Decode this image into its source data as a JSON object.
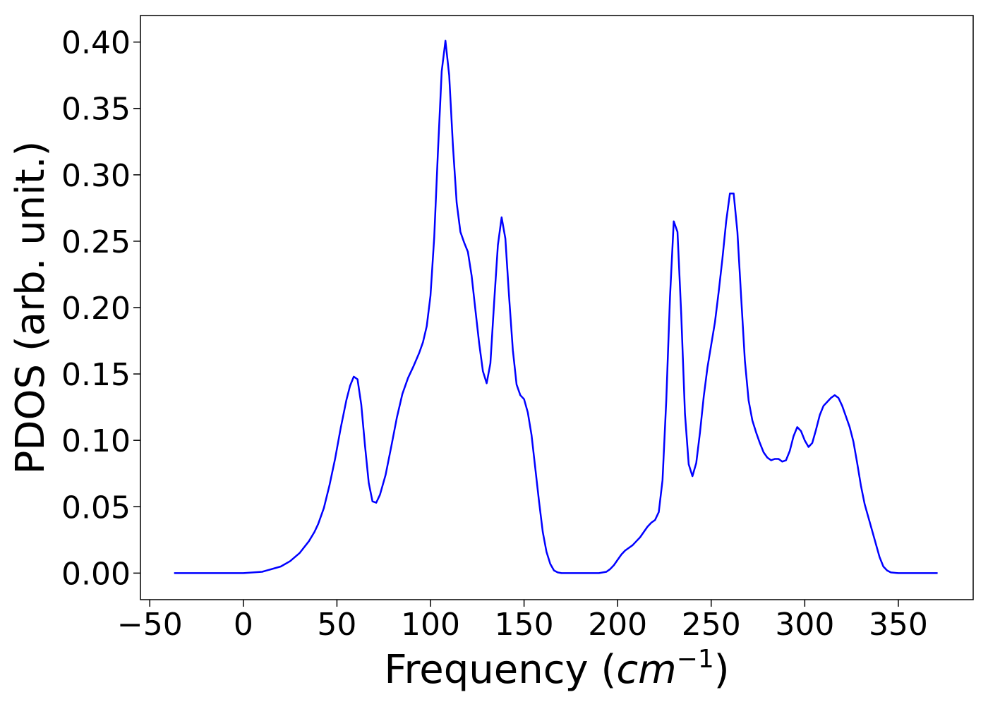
{
  "chart_data": {
    "type": "line",
    "xlabel": "Frequency",
    "xlabel_unit_base": "cm",
    "xlabel_unit_exponent": "−1",
    "ylabel": "PDOS (arb. unit.)",
    "xlim": [
      -55,
      390
    ],
    "ylim": [
      -0.02,
      0.42
    ],
    "x_ticks": [
      -50,
      0,
      50,
      100,
      150,
      200,
      250,
      300,
      350
    ],
    "x_tick_labels": [
      "−50",
      "0",
      "50",
      "100",
      "150",
      "200",
      "250",
      "300",
      "350"
    ],
    "y_ticks": [
      0.0,
      0.05,
      0.1,
      0.15,
      0.2,
      0.25,
      0.3,
      0.35,
      0.4
    ],
    "y_tick_labels": [
      "0.00",
      "0.05",
      "0.10",
      "0.15",
      "0.20",
      "0.25",
      "0.30",
      "0.35",
      "0.40"
    ],
    "grid": false,
    "series": [
      {
        "color": "#0000ff",
        "x": [
          -37,
          -20,
          0,
          10,
          20,
          25,
          30,
          35,
          38,
          40,
          43,
          46,
          49,
          52,
          55,
          57,
          59,
          61,
          63,
          65,
          67,
          69,
          71,
          73,
          76,
          79,
          82,
          85,
          88,
          91,
          94,
          96,
          98,
          100,
          102,
          104,
          106,
          108,
          110,
          112,
          114,
          116,
          118,
          120,
          122,
          124,
          126,
          128,
          130,
          132,
          134,
          136,
          138,
          140,
          142,
          144,
          146,
          148,
          150,
          152,
          154,
          156,
          158,
          160,
          162,
          164,
          166,
          168,
          170,
          175,
          180,
          190,
          194,
          196,
          198,
          200,
          202,
          204,
          206,
          208,
          210,
          212,
          214,
          216,
          218,
          220,
          222,
          224,
          226,
          228,
          230,
          232,
          234,
          236,
          238,
          240,
          242,
          244,
          246,
          248,
          250,
          252,
          254,
          256,
          258,
          260,
          262,
          264,
          266,
          268,
          270,
          272,
          274,
          276,
          278,
          280,
          282,
          284,
          286,
          288,
          290,
          292,
          294,
          296,
          298,
          300,
          302,
          304,
          306,
          308,
          310,
          312,
          314,
          316,
          318,
          320,
          322,
          324,
          326,
          328,
          330,
          332,
          334,
          336,
          338,
          340,
          342,
          344,
          346,
          350,
          360,
          371
        ],
        "y": [
          0.0,
          0.0,
          0.0,
          0.001,
          0.005,
          0.009,
          0.015,
          0.024,
          0.031,
          0.037,
          0.049,
          0.066,
          0.086,
          0.109,
          0.13,
          0.141,
          0.148,
          0.146,
          0.127,
          0.096,
          0.068,
          0.054,
          0.053,
          0.059,
          0.074,
          0.095,
          0.117,
          0.135,
          0.147,
          0.156,
          0.166,
          0.174,
          0.186,
          0.209,
          0.253,
          0.318,
          0.378,
          0.401,
          0.375,
          0.322,
          0.279,
          0.257,
          0.249,
          0.242,
          0.224,
          0.198,
          0.173,
          0.152,
          0.143,
          0.158,
          0.204,
          0.247,
          0.268,
          0.252,
          0.208,
          0.168,
          0.142,
          0.134,
          0.131,
          0.121,
          0.104,
          0.079,
          0.054,
          0.031,
          0.016,
          0.007,
          0.002,
          0.0005,
          0.0,
          0.0,
          0.0,
          0.0,
          0.001,
          0.003,
          0.006,
          0.01,
          0.014,
          0.017,
          0.019,
          0.021,
          0.024,
          0.027,
          0.031,
          0.035,
          0.038,
          0.04,
          0.046,
          0.07,
          0.13,
          0.208,
          0.265,
          0.257,
          0.195,
          0.12,
          0.082,
          0.073,
          0.083,
          0.106,
          0.133,
          0.155,
          0.172,
          0.189,
          0.212,
          0.237,
          0.265,
          0.286,
          0.286,
          0.257,
          0.208,
          0.16,
          0.13,
          0.115,
          0.106,
          0.098,
          0.091,
          0.087,
          0.085,
          0.086,
          0.086,
          0.084,
          0.085,
          0.092,
          0.103,
          0.11,
          0.107,
          0.1,
          0.095,
          0.098,
          0.108,
          0.119,
          0.126,
          0.129,
          0.132,
          0.134,
          0.132,
          0.126,
          0.118,
          0.11,
          0.099,
          0.083,
          0.066,
          0.052,
          0.042,
          0.032,
          0.022,
          0.012,
          0.005,
          0.002,
          0.0005,
          0.0,
          0.0,
          0.0
        ]
      }
    ]
  }
}
